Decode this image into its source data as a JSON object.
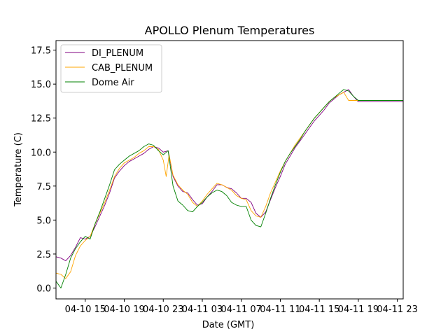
{
  "chart_data": {
    "type": "line",
    "title": "APOLLO Plenum Temperatures",
    "xlabel": "Date (GMT)",
    "ylabel": "Temperature (C)",
    "x_unit": "hours since 04-10 12:00 GMT",
    "xlim": [
      0,
      35.6
    ],
    "ylim": [
      -0.8,
      18.2
    ],
    "x_ticks": [
      {
        "value": 3,
        "label": "04-10 15"
      },
      {
        "value": 7,
        "label": "04-10 19"
      },
      {
        "value": 11,
        "label": "04-10 23"
      },
      {
        "value": 15,
        "label": "04-11 03"
      },
      {
        "value": 19,
        "label": "04-11 07"
      },
      {
        "value": 23,
        "label": "04-11 11"
      },
      {
        "value": 27,
        "label": "04-11 15"
      },
      {
        "value": 31,
        "label": "04-11 19"
      },
      {
        "value": 35,
        "label": "04-11 23"
      }
    ],
    "y_ticks": [
      {
        "value": 0.0,
        "label": "0.0"
      },
      {
        "value": 2.5,
        "label": "2.5"
      },
      {
        "value": 5.0,
        "label": "5.0"
      },
      {
        "value": 7.5,
        "label": "7.5"
      },
      {
        "value": 10.0,
        "label": "10.0"
      },
      {
        "value": 12.5,
        "label": "12.5"
      },
      {
        "value": 15.0,
        "label": "15.0"
      },
      {
        "value": 17.5,
        "label": "17.5"
      }
    ],
    "legend_position": "upper-left",
    "series": [
      {
        "name": "DI_PLENUM",
        "color": "#800080",
        "x": [
          0,
          0.5,
          1,
          1.5,
          2,
          2.5,
          3,
          3.5,
          4,
          4.5,
          5,
          5.5,
          6,
          6.5,
          7,
          7.5,
          8,
          8.5,
          9,
          9.5,
          10,
          10.5,
          11,
          11.5,
          12,
          12.5,
          13,
          13.5,
          14,
          14.5,
          15,
          15.5,
          16,
          16.5,
          17,
          17.5,
          18,
          18.5,
          19,
          19.5,
          20,
          20.5,
          21,
          21.5,
          22,
          22.5,
          23,
          23.5,
          24,
          24.5,
          25,
          25.5,
          26,
          26.5,
          27,
          27.5,
          28,
          28.5,
          29,
          29.5,
          30,
          30.5,
          31,
          31.5,
          32,
          32.5,
          33,
          33.5,
          34,
          34.5,
          35,
          35.3,
          35.6
        ],
        "y": [
          2.3,
          2.2,
          2.0,
          2.4,
          3.0,
          3.7,
          3.6,
          3.8,
          4.5,
          5.3,
          6.1,
          7.0,
          8.1,
          8.6,
          9.0,
          9.3,
          9.5,
          9.7,
          9.9,
          10.2,
          10.4,
          10.3,
          10.0,
          10.1,
          8.2,
          7.5,
          7.1,
          7.0,
          6.5,
          6.1,
          6.2,
          6.7,
          7.1,
          7.6,
          7.6,
          7.4,
          7.3,
          7.0,
          6.6,
          6.6,
          6.3,
          5.5,
          5.2,
          5.6,
          6.5,
          7.4,
          8.2,
          9.1,
          9.7,
          10.3,
          10.8,
          11.3,
          11.8,
          12.3,
          12.7,
          13.1,
          13.6,
          13.9,
          14.2,
          14.4,
          14.6,
          14.1,
          13.7,
          13.7,
          13.7,
          13.7,
          13.7,
          13.7,
          13.7,
          13.7,
          13.7,
          13.7,
          13.7
        ]
      },
      {
        "name": "CAB_PLENUM",
        "color": "#ffa500",
        "x": [
          0,
          0.5,
          1,
          1.5,
          2,
          2.5,
          3,
          3.5,
          4,
          4.5,
          5,
          5.5,
          6,
          6.5,
          7,
          7.5,
          8,
          8.5,
          9,
          9.5,
          10,
          10.5,
          11,
          11.3,
          11.6,
          12,
          12.5,
          13,
          13.5,
          14,
          14.5,
          15,
          15.5,
          16,
          16.5,
          17,
          17.5,
          18,
          18.5,
          19,
          19.5,
          20,
          20.5,
          21,
          21.5,
          22,
          22.5,
          23,
          23.5,
          24,
          24.5,
          25,
          25.5,
          26,
          26.5,
          27,
          27.5,
          28,
          28.5,
          29,
          29.5,
          30,
          30.5,
          31,
          31.5,
          32,
          32.5,
          33,
          33.5,
          34,
          34.5,
          35,
          35.6
        ],
        "y": [
          1.1,
          1.0,
          0.7,
          1.2,
          2.4,
          3.1,
          3.5,
          3.8,
          4.7,
          5.5,
          6.3,
          7.2,
          8.2,
          8.8,
          9.2,
          9.4,
          9.6,
          9.9,
          10.1,
          10.4,
          10.4,
          10.2,
          9.4,
          8.2,
          9.8,
          8.3,
          7.6,
          7.2,
          6.9,
          6.3,
          6.0,
          6.4,
          6.9,
          7.3,
          7.7,
          7.6,
          7.4,
          7.2,
          6.8,
          6.6,
          6.5,
          5.7,
          5.3,
          5.2,
          6.0,
          7.0,
          7.8,
          8.6,
          9.3,
          9.9,
          10.5,
          11.0,
          11.5,
          12.0,
          12.5,
          12.9,
          13.3,
          13.7,
          14.0,
          14.2,
          14.4,
          13.8,
          13.8,
          13.8,
          13.8,
          13.8,
          13.8,
          13.8,
          13.8,
          13.8,
          13.8,
          13.8,
          13.8
        ]
      },
      {
        "name": "Dome Air",
        "color": "#008000",
        "x": [
          0,
          0.5,
          1,
          1.5,
          2,
          2.5,
          3,
          3.5,
          4,
          4.5,
          5,
          5.5,
          6,
          6.5,
          7,
          7.5,
          8,
          8.5,
          9,
          9.5,
          10,
          10.5,
          11,
          11.5,
          12,
          12.5,
          13,
          13.5,
          14,
          14.5,
          15,
          15.5,
          16,
          16.5,
          17,
          17.5,
          18,
          18.5,
          19,
          19.5,
          20,
          20.5,
          21,
          21.5,
          22,
          22.5,
          23,
          23.5,
          24,
          24.5,
          25,
          25.5,
          26,
          26.5,
          27,
          27.5,
          28,
          28.5,
          29,
          29.5,
          30,
          30.5,
          31,
          31.5,
          32,
          32.5,
          33,
          33.5,
          34,
          34.5,
          35,
          35.3,
          35.6
        ],
        "y": [
          0.5,
          0.0,
          1.0,
          2.2,
          2.9,
          3.4,
          3.8,
          3.6,
          4.7,
          5.6,
          6.6,
          7.6,
          8.7,
          9.1,
          9.4,
          9.7,
          9.9,
          10.1,
          10.4,
          10.6,
          10.5,
          10.1,
          9.8,
          10.1,
          7.5,
          6.4,
          6.1,
          5.7,
          5.6,
          6.0,
          6.3,
          6.7,
          7.0,
          7.2,
          7.1,
          6.8,
          6.3,
          6.1,
          6.0,
          6.0,
          5.0,
          4.6,
          4.5,
          5.5,
          6.6,
          7.6,
          8.5,
          9.3,
          9.9,
          10.4,
          10.9,
          11.5,
          12.0,
          12.5,
          12.9,
          13.3,
          13.7,
          14.0,
          14.3,
          14.6,
          14.5,
          14.1,
          13.8,
          13.8,
          13.8,
          13.8,
          13.8,
          13.8,
          13.8,
          13.8,
          13.8,
          13.8,
          13.8
        ]
      }
    ]
  }
}
